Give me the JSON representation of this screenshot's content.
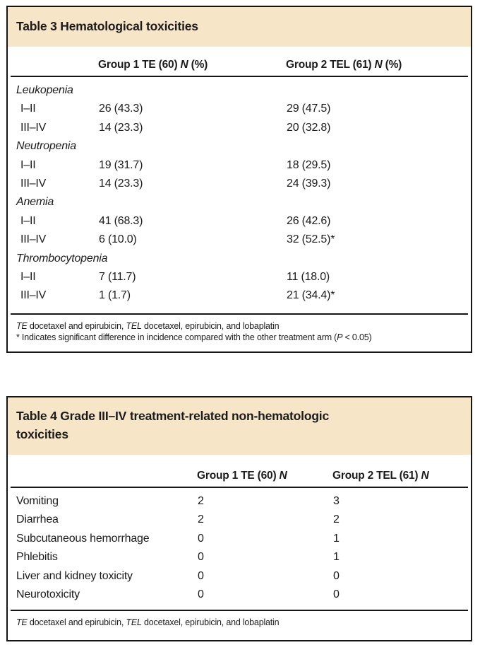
{
  "colors": {
    "panel_header_bg": "#f7e5c8",
    "border": "#151515",
    "text": "#1b1b1b"
  },
  "table3": {
    "title": "Table 3 Hematological toxicities",
    "header": {
      "col1_segments": [
        {
          "t": "Group 1 TE (60) ",
          "i": false
        },
        {
          "t": "N",
          "i": true
        },
        {
          "t": " (%)",
          "i": false
        }
      ],
      "col2_segments": [
        {
          "t": "Group 2 TEL (61) ",
          "i": false
        },
        {
          "t": "N",
          "i": true
        },
        {
          "t": " (%)",
          "i": false
        }
      ]
    },
    "rows": [
      {
        "label": "Leukopenia",
        "italic": true,
        "c1": "",
        "c2": ""
      },
      {
        "label": "I–II",
        "indent": true,
        "c1": "26 (43.3)",
        "c2": "29 (47.5)"
      },
      {
        "label": "III–IV",
        "indent": true,
        "c1": "14 (23.3)",
        "c2": "20 (32.8)"
      },
      {
        "label": "Neutropenia",
        "italic": true,
        "c1": "",
        "c2": ""
      },
      {
        "label": "I–II",
        "indent": true,
        "c1": "19 (31.7)",
        "c2": "18 (29.5)"
      },
      {
        "label": "III–IV",
        "indent": true,
        "c1": "14 (23.3)",
        "c2": "24 (39.3)"
      },
      {
        "label": "Anemia",
        "italic": true,
        "c1": "",
        "c2": ""
      },
      {
        "label": "I–II",
        "indent": true,
        "c1": "41 (68.3)",
        "c2": "26 (42.6)"
      },
      {
        "label": "III–IV",
        "indent": true,
        "c1": "6 (10.0)",
        "c2": "32 (52.5)*"
      },
      {
        "label": "Thrombocytopenia",
        "italic": true,
        "c1": "",
        "c2": ""
      },
      {
        "label": "I–II",
        "indent": true,
        "c1": "7 (11.7)",
        "c2": "11 (18.0)"
      },
      {
        "label": "III–IV",
        "indent": true,
        "c1": "1 (1.7)",
        "c2": "21 (34.4)*"
      }
    ],
    "footnotes": [
      [
        {
          "t": "TE",
          "i": true
        },
        {
          "t": " docetaxel and epirubicin, ",
          "i": false
        },
        {
          "t": "TEL",
          "i": true
        },
        {
          "t": " docetaxel, epirubicin, and lobaplatin",
          "i": false
        }
      ],
      [
        {
          "t": "* Indicates significant difference in incidence compared with the other treatment arm (",
          "i": false
        },
        {
          "t": "P",
          "i": true
        },
        {
          "t": " < 0.05)",
          "i": false
        }
      ]
    ]
  },
  "table4": {
    "title_lines": [
      "Table 4 Grade III–IV treatment-related non-hematologic",
      "toxicities"
    ],
    "header": {
      "col1_segments": [
        {
          "t": "Group 1 TE (60) ",
          "i": false
        },
        {
          "t": "N",
          "i": true
        }
      ],
      "col2_segments": [
        {
          "t": "Group 2 TEL (61) ",
          "i": false
        },
        {
          "t": "N",
          "i": true
        }
      ]
    },
    "rows": [
      {
        "label": "Vomiting",
        "c1": "2",
        "c2": "3"
      },
      {
        "label": "Diarrhea",
        "c1": "2",
        "c2": "2"
      },
      {
        "label": "Subcutaneous hemorrhage",
        "c1": "0",
        "c2": "1"
      },
      {
        "label": "Phlebitis",
        "c1": "0",
        "c2": "1"
      },
      {
        "label": "Liver and kidney toxicity",
        "c1": "0",
        "c2": "0"
      },
      {
        "label": "Neurotoxicity",
        "c1": "0",
        "c2": "0"
      }
    ],
    "footnotes": [
      [
        {
          "t": "TE",
          "i": true
        },
        {
          "t": " docetaxel and epirubicin, ",
          "i": false
        },
        {
          "t": "TEL",
          "i": true
        },
        {
          "t": " docetaxel, epirubicin, and lobaplatin",
          "i": false
        }
      ]
    ]
  }
}
